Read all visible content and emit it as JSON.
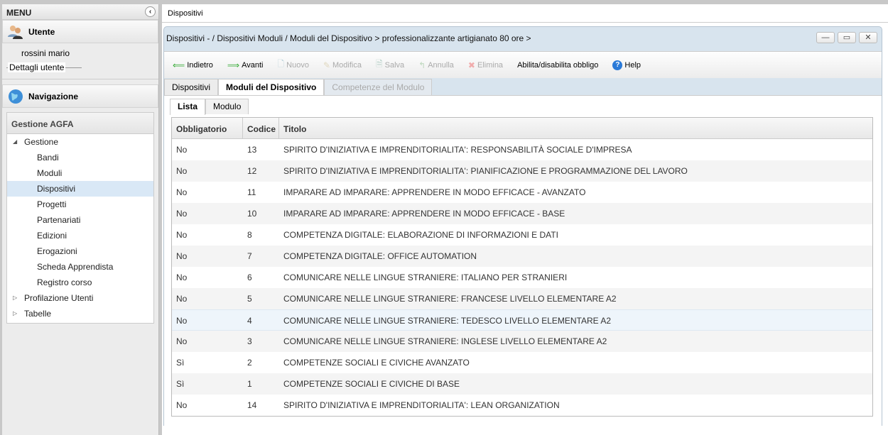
{
  "sidebar": {
    "title": "MENU",
    "user_section": "Utente",
    "user_name": "rossini mario",
    "user_details": "Dettagli utente",
    "nav_section": "Navigazione",
    "group": "Gestione AGFA",
    "tree": [
      {
        "label": "Gestione",
        "level": 0,
        "expanded": true
      },
      {
        "label": "Bandi",
        "level": 1
      },
      {
        "label": "Moduli",
        "level": 1
      },
      {
        "label": "Dispositivi",
        "level": 1,
        "selected": true
      },
      {
        "label": "Progetti",
        "level": 1
      },
      {
        "label": "Partenariati",
        "level": 1
      },
      {
        "label": "Edizioni",
        "level": 1
      },
      {
        "label": "Erogazioni",
        "level": 1
      },
      {
        "label": "Scheda Apprendista",
        "level": 1
      },
      {
        "label": "Registro corso",
        "level": 1
      },
      {
        "label": "Profilazione Utenti",
        "level": 0,
        "expanded": false
      },
      {
        "label": "Tabelle",
        "level": 0,
        "expanded": false
      }
    ]
  },
  "main": {
    "tab": "Dispositivi",
    "window_title": "Dispositivi - / Dispositivi Moduli / Moduli del Dispositivo > professionalizzante artigianato 80 ore >",
    "toolbar": [
      {
        "label": "Indietro",
        "icon": "arrow-left-icon",
        "disabled": false
      },
      {
        "label": "Avanti",
        "icon": "arrow-right-icon",
        "disabled": false
      },
      {
        "label": "Nuovo",
        "icon": "new-doc-icon",
        "disabled": true
      },
      {
        "label": "Modifica",
        "icon": "edit-icon",
        "disabled": true
      },
      {
        "label": "Salva",
        "icon": "save-icon",
        "disabled": true
      },
      {
        "label": "Annulla",
        "icon": "undo-icon",
        "disabled": true
      },
      {
        "label": "Elimina",
        "icon": "delete-icon",
        "disabled": true
      },
      {
        "label": "Abilita/disabilita obbligo",
        "icon": "",
        "disabled": false
      },
      {
        "label": "Help",
        "icon": "help-icon",
        "disabled": false
      }
    ],
    "tabs": [
      {
        "label": "Dispositivi"
      },
      {
        "label": "Moduli del Dispositivo",
        "active": true
      },
      {
        "label": "Competenze del Modulo",
        "disabled": true
      }
    ],
    "subtabs": [
      {
        "label": "Lista",
        "active": true
      },
      {
        "label": "Modulo"
      }
    ],
    "columns": [
      "Obbligatorio",
      "Codice",
      "Titolo"
    ],
    "rows": [
      [
        "No",
        "13",
        "SPIRITO D'INIZIATIVA E IMPRENDITORIALITA': RESPONSABILITÀ SOCIALE D'IMPRESA"
      ],
      [
        "No",
        "12",
        "SPIRITO D'INIZIATIVA E IMPRENDITORIALITA': PIANIFICAZIONE E PROGRAMMAZIONE DEL LAVORO"
      ],
      [
        "No",
        "11",
        "IMPARARE AD IMPARARE: APPRENDERE IN MODO EFFICACE - AVANZATO"
      ],
      [
        "No",
        "10",
        "IMPARARE AD IMPARARE: APPRENDERE IN MODO EFFICACE - BASE"
      ],
      [
        "No",
        "8",
        "COMPETENZA DIGITALE: ELABORAZIONE DI INFORMAZIONI E DATI"
      ],
      [
        "No",
        "7",
        "COMPETENZA DIGITALE: OFFICE AUTOMATION"
      ],
      [
        "No",
        "6",
        "COMUNICARE NELLE LINGUE STRANIERE: ITALIANO PER STRANIERI"
      ],
      [
        "No",
        "5",
        "COMUNICARE NELLE LINGUE STRANIERE: FRANCESE LIVELLO ELEMENTARE A2"
      ],
      [
        "No",
        "4",
        "COMUNICARE NELLE LINGUE STRANIERE: TEDESCO LIVELLO ELEMENTARE A2"
      ],
      [
        "No",
        "3",
        "COMUNICARE NELLE LINGUE STRANIERE: INGLESE LIVELLO ELEMENTARE A2"
      ],
      [
        "Sì",
        "2",
        "COMPETENZE SOCIALI E CIVICHE AVANZATO"
      ],
      [
        "Sì",
        "1",
        "COMPETENZE SOCIALI E CIVICHE DI BASE"
      ],
      [
        "No",
        "14",
        "SPIRITO D'INIZIATIVA E IMPRENDITORIALITA': LEAN ORGANIZATION"
      ]
    ],
    "highlighted_row": 8
  }
}
